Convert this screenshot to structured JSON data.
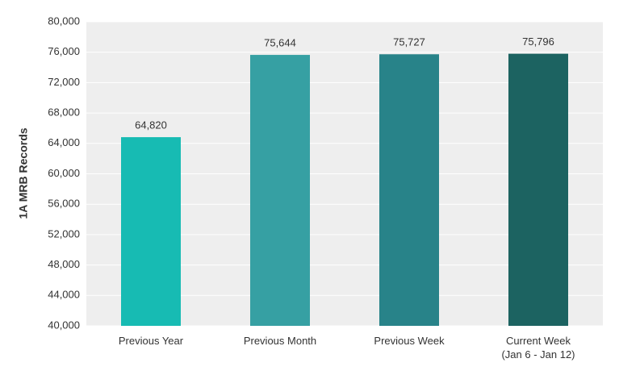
{
  "chart_data": {
    "type": "bar",
    "y_label": "1A MRB Records",
    "categories": [
      "Previous Year",
      "Previous Month",
      "Previous Week",
      "Current Week\n(Jan 6 - Jan 12)"
    ],
    "values": [
      64820,
      75644,
      75727,
      75796
    ],
    "value_labels": [
      "64,820",
      "75,644",
      "75,727",
      "75,796"
    ],
    "colors": [
      "#17bbb3",
      "#36a0a3",
      "#288389",
      "#1c6361"
    ],
    "ylim": [
      40000,
      80000
    ],
    "yticks": [
      {
        "value": 40000,
        "label": "40,000"
      },
      {
        "value": 44000,
        "label": "44,000"
      },
      {
        "value": 48000,
        "label": "48,000"
      },
      {
        "value": 52000,
        "label": "52,000"
      },
      {
        "value": 56000,
        "label": "56,000"
      },
      {
        "value": 60000,
        "label": "60,000"
      },
      {
        "value": 64000,
        "label": "64,000"
      },
      {
        "value": 68000,
        "label": "68,000"
      },
      {
        "value": 72000,
        "label": "72,000"
      },
      {
        "value": 76000,
        "label": "76,000"
      },
      {
        "value": 80000,
        "label": "80,000"
      }
    ],
    "grid": true
  }
}
